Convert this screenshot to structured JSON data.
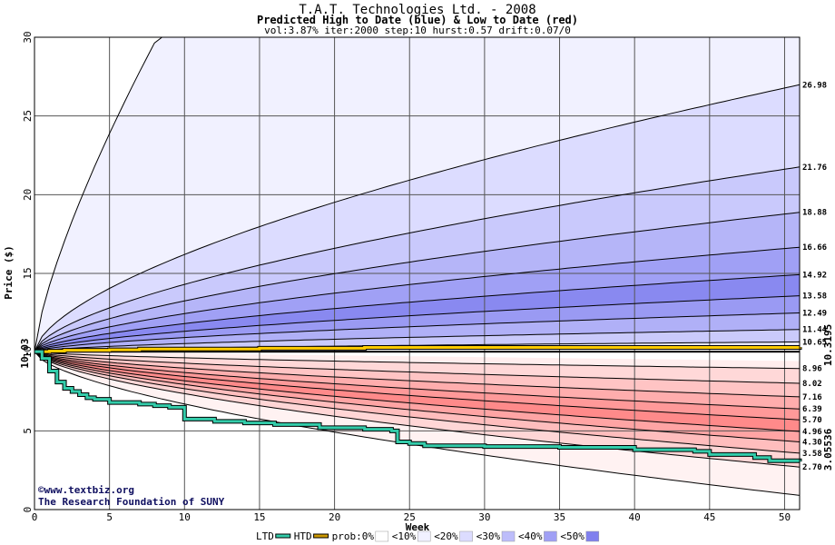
{
  "chart_data": {
    "type": "area",
    "title": "T.A.T. Technologies Ltd. - 2008",
    "subtitle": "Predicted High to Date (blue) &  Low to Date (red)",
    "params": "vol:3.87% iter:2000 step:10 hurst:0.57 drift:0.07/0",
    "xlabel": "Week",
    "ylabel": "Price ($)",
    "xlim": [
      0,
      51
    ],
    "ylim": [
      0,
      30
    ],
    "x_ticks": [
      0,
      5,
      10,
      15,
      20,
      25,
      30,
      35,
      40,
      45,
      50
    ],
    "y_ticks": [
      0,
      5,
      10,
      15,
      20,
      25,
      30
    ],
    "start_price": 10.03,
    "start_label": "10.03",
    "grid": true,
    "high_curves": [
      {
        "end": 30.0,
        "c": 0.74
      },
      {
        "end": 26.98,
        "label": "26.98"
      },
      {
        "end": 21.76,
        "label": "21.76"
      },
      {
        "end": 18.88,
        "label": "18.88"
      },
      {
        "end": 16.66,
        "label": "16.66"
      },
      {
        "end": 14.92,
        "label": "14.92"
      },
      {
        "end": 13.58,
        "label": "13.58"
      },
      {
        "end": 12.49,
        "label": "12.49"
      },
      {
        "end": 11.44,
        "label": "11.44"
      },
      {
        "end": 10.65,
        "label": "10.65"
      }
    ],
    "low_curves": [
      {
        "end": 8.96,
        "label": "8.96"
      },
      {
        "end": 8.02,
        "label": "8.02"
      },
      {
        "end": 7.16,
        "label": "7.16"
      },
      {
        "end": 6.39,
        "label": "6.39"
      },
      {
        "end": 5.7,
        "label": "5.70"
      },
      {
        "end": 4.96,
        "label": "4.96"
      },
      {
        "end": 4.3,
        "label": "4.30"
      },
      {
        "end": 3.58,
        "label": "3.58"
      },
      {
        "end": 2.7,
        "label": "2.70"
      },
      {
        "end": 0.9
      }
    ],
    "htd": {
      "name": "HTD",
      "value_label": "10.3195",
      "points": [
        [
          0,
          10.03
        ],
        [
          1,
          10.07
        ],
        [
          2,
          10.12
        ],
        [
          5,
          10.15
        ],
        [
          7,
          10.2
        ],
        [
          15,
          10.25
        ],
        [
          22,
          10.3
        ],
        [
          51,
          10.32
        ]
      ]
    },
    "ltd": {
      "name": "LTD",
      "value_label": "3.05536",
      "points": [
        [
          0,
          10.03
        ],
        [
          0.5,
          9.6
        ],
        [
          1,
          8.8
        ],
        [
          1.5,
          8.1
        ],
        [
          2,
          7.7
        ],
        [
          2.5,
          7.5
        ],
        [
          3,
          7.3
        ],
        [
          3.5,
          7.1
        ],
        [
          4,
          7.0
        ],
        [
          5,
          6.8
        ],
        [
          7,
          6.7
        ],
        [
          8,
          6.6
        ],
        [
          9,
          6.5
        ],
        [
          10,
          5.75
        ],
        [
          12,
          5.6
        ],
        [
          14,
          5.5
        ],
        [
          16,
          5.4
        ],
        [
          19,
          5.2
        ],
        [
          22,
          5.1
        ],
        [
          23.8,
          5.0
        ],
        [
          24.2,
          4.3
        ],
        [
          25,
          4.2
        ],
        [
          26,
          4.05
        ],
        [
          30,
          4.0
        ],
        [
          35,
          3.95
        ],
        [
          40,
          3.8
        ],
        [
          44,
          3.7
        ],
        [
          45,
          3.5
        ],
        [
          48,
          3.3
        ],
        [
          49,
          3.1
        ],
        [
          51,
          3.05
        ]
      ]
    },
    "credit_line1": "©www.textbiz.org",
    "credit_line2": "The Research Foundation of SUNY",
    "legend": [
      {
        "label": "LTD",
        "kind": "line",
        "color": "#33ccaa"
      },
      {
        "label": "HTD",
        "kind": "line",
        "color": "#cc9900"
      },
      {
        "label": "prob:0%",
        "kind": "box",
        "color": "#ffffff"
      },
      {
        "label": "<10%",
        "kind": "box",
        "color": "#f1f1ff"
      },
      {
        "label": "<20%",
        "kind": "box",
        "color": "#dcdcff"
      },
      {
        "label": "<30%",
        "kind": "box",
        "color": "#bdbdfa"
      },
      {
        "label": "<40%",
        "kind": "box",
        "color": "#a0a0f5"
      },
      {
        "label": "<50%",
        "kind": "box",
        "color": "#8080ee"
      }
    ],
    "colors": {
      "high_fills": [
        "#f1f1ff",
        "#dcdcff",
        "#c9c9fc",
        "#b5b5f8",
        "#a0a0f5",
        "#8989f0",
        "#9a9af3",
        "#b0b0f7",
        "#cacafb",
        "#e6e6ff"
      ],
      "low_fills": [
        "#ffeeee",
        "#ffd8d8",
        "#ffc4c4",
        "#ffadad",
        "#ff9999",
        "#ff8a8a",
        "#ffa4a4",
        "#ffbdbd",
        "#ffd6d6",
        "#fff2f2"
      ],
      "ltd_color": "#33ccaa",
      "htd_color": "#ffcc00",
      "ltd_label_color": "#00a060",
      "htd_label_color": "#a07000"
    }
  }
}
